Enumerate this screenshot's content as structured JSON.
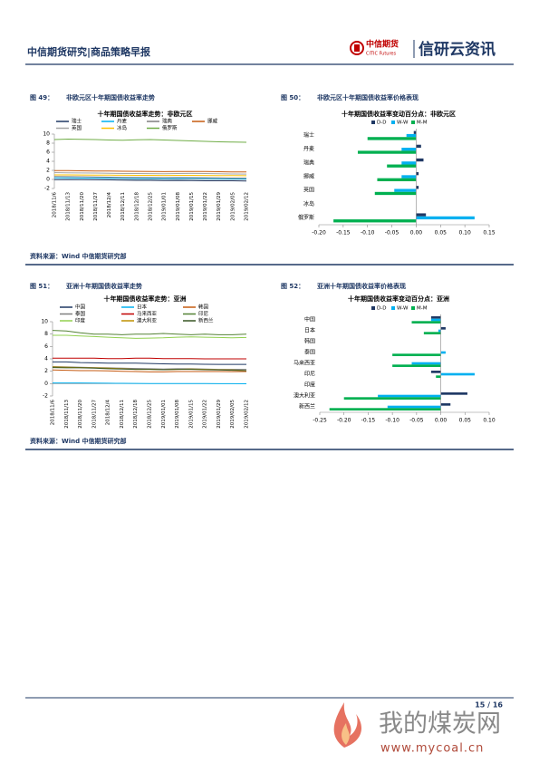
{
  "header": {
    "title": "中信期货研究|商品策略早报",
    "logo_cn": "中信期货",
    "logo_en": "CITIC Futures",
    "brand": "信研云资讯"
  },
  "figures": [
    {
      "number": "图 49：",
      "caption": "非欧元区十年期国债收益率走势",
      "chart": {
        "type": "line",
        "title": "十年期国债收益率走势：非欧元区",
        "x": [
          "2018/11/6",
          "2018/11/13",
          "2018/11/20",
          "2018/11/27",
          "2018/12/4",
          "2018/12/11",
          "2018/12/18",
          "2018/12/25",
          "2019/01/01",
          "2019/01/08",
          "2019/01/15",
          "2019/01/22",
          "2019/01/29",
          "2019/02/05",
          "2019/02/12"
        ],
        "series": [
          {
            "name": "瑞士",
            "color": "#1f3864",
            "values": [
              -0.05,
              -0.02,
              -0.05,
              -0.08,
              -0.1,
              -0.15,
              -0.2,
              -0.2,
              -0.25,
              -0.22,
              -0.25,
              -0.3,
              -0.3,
              -0.3,
              -0.35
            ]
          },
          {
            "name": "丹麦",
            "color": "#00b0f0",
            "values": [
              0.35,
              0.35,
              0.3,
              0.3,
              0.28,
              0.25,
              0.2,
              0.2,
              0.18,
              0.2,
              0.22,
              0.2,
              0.15,
              0.12,
              0.1
            ]
          },
          {
            "name": "瑞典",
            "color": "#7f7f7f",
            "values": [
              0.65,
              0.62,
              0.6,
              0.55,
              0.5,
              0.45,
              0.45,
              0.42,
              0.4,
              0.42,
              0.4,
              0.38,
              0.33,
              0.3,
              0.28
            ]
          },
          {
            "name": "挪威",
            "color": "#c55a11",
            "values": [
              1.95,
              1.93,
              1.9,
              1.87,
              1.85,
              1.8,
              1.78,
              1.75,
              1.72,
              1.75,
              1.73,
              1.75,
              1.7,
              1.65,
              1.63
            ]
          },
          {
            "name": "英国",
            "color": "#a5a5a5",
            "values": [
              1.5,
              1.45,
              1.42,
              1.4,
              1.35,
              1.3,
              1.3,
              1.28,
              1.25,
              1.3,
              1.32,
              1.3,
              1.25,
              1.2,
              1.18
            ]
          },
          {
            "name": "冰岛",
            "color": "#ffc000",
            "values": [
              1.0,
              1.0,
              0.98,
              0.95,
              0.95,
              0.92,
              0.9,
              0.9,
              0.88,
              0.9,
              0.9,
              0.88,
              0.85,
              0.85,
              0.82
            ]
          },
          {
            "name": "俄罗斯",
            "color": "#70ad47",
            "values": [
              8.8,
              8.9,
              8.85,
              8.8,
              8.7,
              8.65,
              8.75,
              8.8,
              8.7,
              8.6,
              8.5,
              8.4,
              8.3,
              8.25,
              8.2
            ]
          }
        ],
        "ylim": [
          -2,
          10
        ],
        "yticks": [
          -2,
          0,
          2,
          4,
          6,
          8,
          10
        ]
      }
    },
    {
      "number": "图 50：",
      "caption": "非欧元区十年期国债收益率价格表现",
      "chart": {
        "type": "bar",
        "title": "十年期国债收益率变动百分点：非欧元区",
        "categories": [
          "瑞士",
          "丹麦",
          "瑞典",
          "挪威",
          "英国",
          "冰岛",
          "俄罗斯"
        ],
        "series": [
          {
            "name": "D-D",
            "color": "#1f3864",
            "values": [
              -0.005,
              0.01,
              0.015,
              0.005,
              0.005,
              0,
              0.02
            ]
          },
          {
            "name": "W-W",
            "color": "#00b0f0",
            "values": [
              -0.02,
              -0.03,
              -0.03,
              -0.03,
              -0.045,
              0,
              0.12
            ]
          },
          {
            "name": "M-M",
            "color": "#00b050",
            "values": [
              -0.1,
              -0.12,
              -0.06,
              -0.08,
              -0.085,
              0,
              -0.17
            ]
          }
        ],
        "xlim": [
          -0.2,
          0.15
        ],
        "xticks": [
          {
            "value": -0.2,
            "label": "-0.20"
          },
          {
            "value": -0.15,
            "label": "-0.15"
          },
          {
            "value": -0.1,
            "label": "-0.10"
          },
          {
            "value": -0.05,
            "label": "-0.05"
          },
          {
            "value": 0,
            "label": "0.00"
          },
          {
            "value": 0.05,
            "label": "0.05"
          },
          {
            "value": 0.1,
            "label": "0.10"
          },
          {
            "value": 0.15,
            "label": "0.15"
          }
        ]
      }
    },
    {
      "number": "图 51：",
      "caption": "亚洲十年期国债收益率走势",
      "chart": {
        "type": "line",
        "title": "十年期国债收益率走势：亚洲",
        "x": [
          "2018/11/6",
          "2018/11/13",
          "2018/11/20",
          "2018/11/27",
          "2018/12/4",
          "2018/12/11",
          "2018/12/18",
          "2018/12/25",
          "2019/01/01",
          "2019/01/08",
          "2019/01/15",
          "2019/01/22",
          "2019/01/29",
          "2019/02/05",
          "2019/02/12"
        ],
        "series": [
          {
            "name": "中国",
            "color": "#1f3864",
            "values": [
              3.5,
              3.5,
              3.4,
              3.35,
              3.3,
              3.3,
              3.3,
              3.25,
              3.2,
              3.15,
              3.15,
              3.12,
              3.1,
              3.1,
              3.1
            ]
          },
          {
            "name": "日本",
            "color": "#00b0f0",
            "values": [
              0.1,
              0.11,
              0.1,
              0.09,
              0.07,
              0.05,
              0.04,
              0.02,
              0.0,
              0.02,
              0.01,
              0.0,
              -0.01,
              -0.01,
              -0.02
            ]
          },
          {
            "name": "韩国",
            "color": "#c55a11",
            "values": [
              2.2,
              2.15,
              2.1,
              2.1,
              2.05,
              2.0,
              1.95,
              1.9,
              1.9,
              1.95,
              1.95,
              1.95,
              1.95,
              1.93,
              1.95
            ]
          },
          {
            "name": "泰国",
            "color": "#7f7f7f",
            "values": [
              2.75,
              2.7,
              2.65,
              2.6,
              2.55,
              2.5,
              2.45,
              2.4,
              2.35,
              2.4,
              2.4,
              2.35,
              2.3,
              2.3,
              2.3
            ]
          },
          {
            "name": "马来西亚",
            "color": "#c00000",
            "values": [
              4.1,
              4.1,
              4.1,
              4.1,
              4.05,
              4.05,
              4.1,
              4.1,
              4.05,
              4.05,
              4.05,
              4.0,
              4.0,
              4.0,
              4.0
            ]
          },
          {
            "name": "印尼",
            "color": "#548235",
            "values": [
              8.6,
              8.5,
              8.2,
              8.0,
              8.0,
              7.9,
              8.0,
              8.0,
              8.1,
              8.0,
              7.9,
              8.0,
              7.9,
              7.9,
              8.0
            ]
          },
          {
            "name": "印度",
            "color": "#92d050",
            "values": [
              7.8,
              7.8,
              7.7,
              7.6,
              7.5,
              7.4,
              7.3,
              7.35,
              7.4,
              7.5,
              7.55,
              7.5,
              7.45,
              7.4,
              7.45
            ]
          },
          {
            "name": "澳大利亚",
            "color": "#bf9000",
            "values": [
              2.7,
              2.65,
              2.6,
              2.55,
              2.5,
              2.4,
              2.3,
              2.3,
              2.25,
              2.3,
              2.35,
              2.3,
              2.25,
              2.2,
              2.1
            ]
          },
          {
            "name": "新西兰",
            "color": "#375623",
            "values": [
              2.6,
              2.55,
              2.55,
              2.5,
              2.4,
              2.35,
              2.3,
              2.3,
              2.25,
              2.3,
              2.3,
              2.25,
              2.2,
              2.15,
              2.1
            ]
          }
        ],
        "ylim": [
          -2,
          10
        ],
        "yticks": [
          -2,
          0,
          2,
          4,
          6,
          8,
          10
        ]
      }
    },
    {
      "number": "图 52：",
      "caption": "亚洲十年期国债收益率价格表现",
      "chart": {
        "type": "bar",
        "title": "十年期国债收益率变动百分点：亚洲",
        "categories": [
          "中国",
          "日本",
          "韩国",
          "泰国",
          "马来西亚",
          "印尼",
          "印度",
          "澳大利亚",
          "新西兰"
        ],
        "series": [
          {
            "name": "D-D",
            "color": "#1f3864",
            "values": [
              -0.02,
              0.01,
              0,
              0,
              0,
              -0.02,
              0,
              0.055,
              0.02
            ]
          },
          {
            "name": "W-W",
            "color": "#00b0f0",
            "values": [
              -0.02,
              -0.005,
              0,
              0.01,
              -0.06,
              0.07,
              0,
              -0.13,
              -0.11
            ]
          },
          {
            "name": "M-M",
            "color": "#00b050",
            "values": [
              -0.06,
              -0.035,
              0,
              -0.1,
              -0.1,
              -0.01,
              0,
              -0.2,
              -0.23
            ]
          }
        ],
        "xlim": [
          -0.25,
          0.1
        ],
        "xticks": [
          {
            "value": -0.25,
            "label": "-0.25"
          },
          {
            "value": -0.2,
            "label": "-0.20"
          },
          {
            "value": -0.15,
            "label": "-0.15"
          },
          {
            "value": -0.1,
            "label": "-0.10"
          },
          {
            "value": -0.05,
            "label": "-0.05"
          },
          {
            "value": 0,
            "label": "0.00"
          },
          {
            "value": 0.05,
            "label": "0.05"
          },
          {
            "value": 0.1,
            "label": "0.10"
          }
        ]
      }
    }
  ],
  "sources": [
    "资料来源：Wind 中信期货研究部",
    "资料来源：Wind 中信期货研究部"
  ],
  "footer": {
    "page": "15 / 16"
  },
  "watermark": {
    "text": "我的煤炭网",
    "url": "www.mycoal.cn"
  }
}
